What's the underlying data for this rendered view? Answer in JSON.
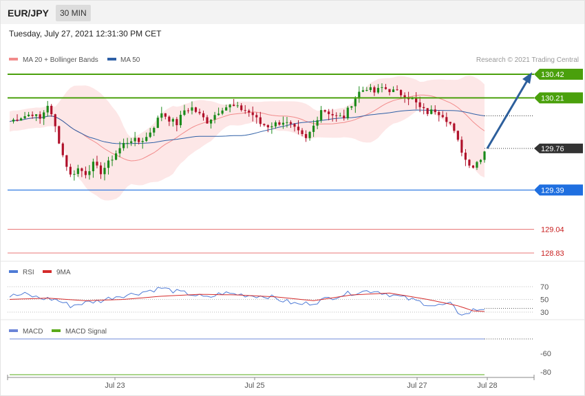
{
  "header": {
    "symbol": "EUR/JPY",
    "interval": "30 MIN",
    "datetime": "Tuesday, July 27, 2021 12:31:30 PM CET"
  },
  "legend": {
    "ma20": "MA 20 + Bollinger Bands",
    "ma50": "MA 50",
    "copyright": "Research © 2021 Trading Central"
  },
  "colors": {
    "up_candle": "#1a8a1a",
    "down_candle": "#b0102a",
    "ma20": "#f28b8b",
    "ma50": "#2e5fa6",
    "bollinger_fill": "#fde3e3",
    "resistance": "#4aa00c",
    "support": "#1f6fe0",
    "target_down": "#e24a4a",
    "arrow": "#2d5f9c",
    "rsi": "#4f7bd6",
    "rsi_ma": "#d42a2a",
    "macd": "#6b84d8",
    "macd_signal": "#5aaa1a"
  },
  "chart_data": [
    {
      "type": "candlestick",
      "x_labels": [
        "Jul 23",
        "Jul 25",
        "Jul 27",
        "Jul 28"
      ],
      "y_range": [
        128.7,
        130.5
      ],
      "price_levels": [
        {
          "value": 130.42,
          "label": "130.42",
          "kind": "resistance"
        },
        {
          "value": 130.21,
          "label": "130.21",
          "kind": "resistance"
        },
        {
          "value": 129.76,
          "label": "129.76",
          "kind": "current"
        },
        {
          "value": 129.39,
          "label": "129.39",
          "kind": "support"
        },
        {
          "value": 129.04,
          "label": "129.04",
          "kind": "target"
        },
        {
          "value": 128.83,
          "label": "128.83",
          "kind": "target"
        }
      ],
      "forecast_arrow": {
        "from": 129.76,
        "to": 130.42
      },
      "close_path": [
        [
          0,
          130.0
        ],
        [
          3,
          130.04
        ],
        [
          6,
          130.07
        ],
        [
          8,
          130.02
        ],
        [
          10,
          130.15
        ],
        [
          12,
          129.95
        ],
        [
          14,
          129.7
        ],
        [
          16,
          129.52
        ],
        [
          18,
          129.58
        ],
        [
          20,
          129.54
        ],
        [
          22,
          129.62
        ],
        [
          24,
          129.55
        ],
        [
          26,
          129.63
        ],
        [
          28,
          129.72
        ],
        [
          30,
          129.8
        ],
        [
          32,
          129.84
        ],
        [
          34,
          129.82
        ],
        [
          36,
          129.86
        ],
        [
          38,
          129.96
        ],
        [
          40,
          130.08
        ],
        [
          42,
          130.02
        ],
        [
          44,
          129.98
        ],
        [
          46,
          130.1
        ],
        [
          48,
          130.12
        ],
        [
          50,
          130.06
        ],
        [
          52,
          130.0
        ],
        [
          54,
          130.06
        ],
        [
          56,
          130.12
        ],
        [
          58,
          130.14
        ],
        [
          60,
          130.12
        ],
        [
          62,
          130.1
        ],
        [
          64,
          130.06
        ],
        [
          66,
          129.98
        ],
        [
          68,
          129.96
        ],
        [
          70,
          129.98
        ],
        [
          72,
          130.0
        ],
        [
          74,
          129.96
        ],
        [
          76,
          129.9
        ],
        [
          78,
          129.84
        ],
        [
          80,
          129.96
        ],
        [
          82,
          130.11
        ],
        [
          84,
          130.08
        ],
        [
          86,
          130.04
        ],
        [
          88,
          130.04
        ],
        [
          90,
          130.16
        ],
        [
          92,
          130.26
        ],
        [
          94,
          130.3
        ],
        [
          96,
          130.26
        ],
        [
          98,
          130.3
        ],
        [
          100,
          130.28
        ],
        [
          102,
          130.26
        ],
        [
          104,
          130.23
        ],
        [
          106,
          130.2
        ],
        [
          108,
          130.12
        ],
        [
          110,
          130.08
        ],
        [
          112,
          130.1
        ],
        [
          114,
          130.06
        ],
        [
          116,
          129.98
        ],
        [
          118,
          129.82
        ],
        [
          120,
          129.66
        ],
        [
          122,
          129.6
        ],
        [
          124,
          129.68
        ],
        [
          125,
          129.74
        ]
      ]
    },
    {
      "type": "line",
      "name": "RSI",
      "series_names": [
        "RSI",
        "9MA"
      ],
      "levels": [
        70,
        50,
        30
      ],
      "y_range": [
        20,
        80
      ],
      "rsi_path": [
        [
          0,
          55
        ],
        [
          4,
          58
        ],
        [
          8,
          52
        ],
        [
          12,
          50
        ],
        [
          16,
          40
        ],
        [
          20,
          45
        ],
        [
          24,
          48
        ],
        [
          28,
          55
        ],
        [
          32,
          58
        ],
        [
          36,
          63
        ],
        [
          40,
          68
        ],
        [
          44,
          62
        ],
        [
          48,
          58
        ],
        [
          52,
          52
        ],
        [
          56,
          60
        ],
        [
          60,
          58
        ],
        [
          64,
          56
        ],
        [
          68,
          55
        ],
        [
          72,
          48
        ],
        [
          76,
          42
        ],
        [
          80,
          45
        ],
        [
          84,
          52
        ],
        [
          88,
          58
        ],
        [
          92,
          62
        ],
        [
          96,
          64
        ],
        [
          100,
          58
        ],
        [
          104,
          52
        ],
        [
          108,
          46
        ],
        [
          112,
          40
        ],
        [
          116,
          42
        ],
        [
          118,
          30
        ],
        [
          120,
          26
        ],
        [
          122,
          33
        ],
        [
          124,
          35
        ],
        [
          125,
          36
        ]
      ],
      "ma_path": [
        [
          0,
          50
        ],
        [
          10,
          52
        ],
        [
          20,
          48
        ],
        [
          30,
          50
        ],
        [
          40,
          55
        ],
        [
          50,
          58
        ],
        [
          60,
          57
        ],
        [
          70,
          54
        ],
        [
          80,
          48
        ],
        [
          90,
          57
        ],
        [
          100,
          60
        ],
        [
          110,
          50
        ],
        [
          118,
          40
        ],
        [
          122,
          32
        ],
        [
          125,
          31
        ]
      ]
    },
    {
      "type": "line",
      "name": "MACD",
      "series_names": [
        "MACD",
        "MACD Signal"
      ],
      "y_labels": [
        "-60",
        "-80"
      ]
    }
  ]
}
